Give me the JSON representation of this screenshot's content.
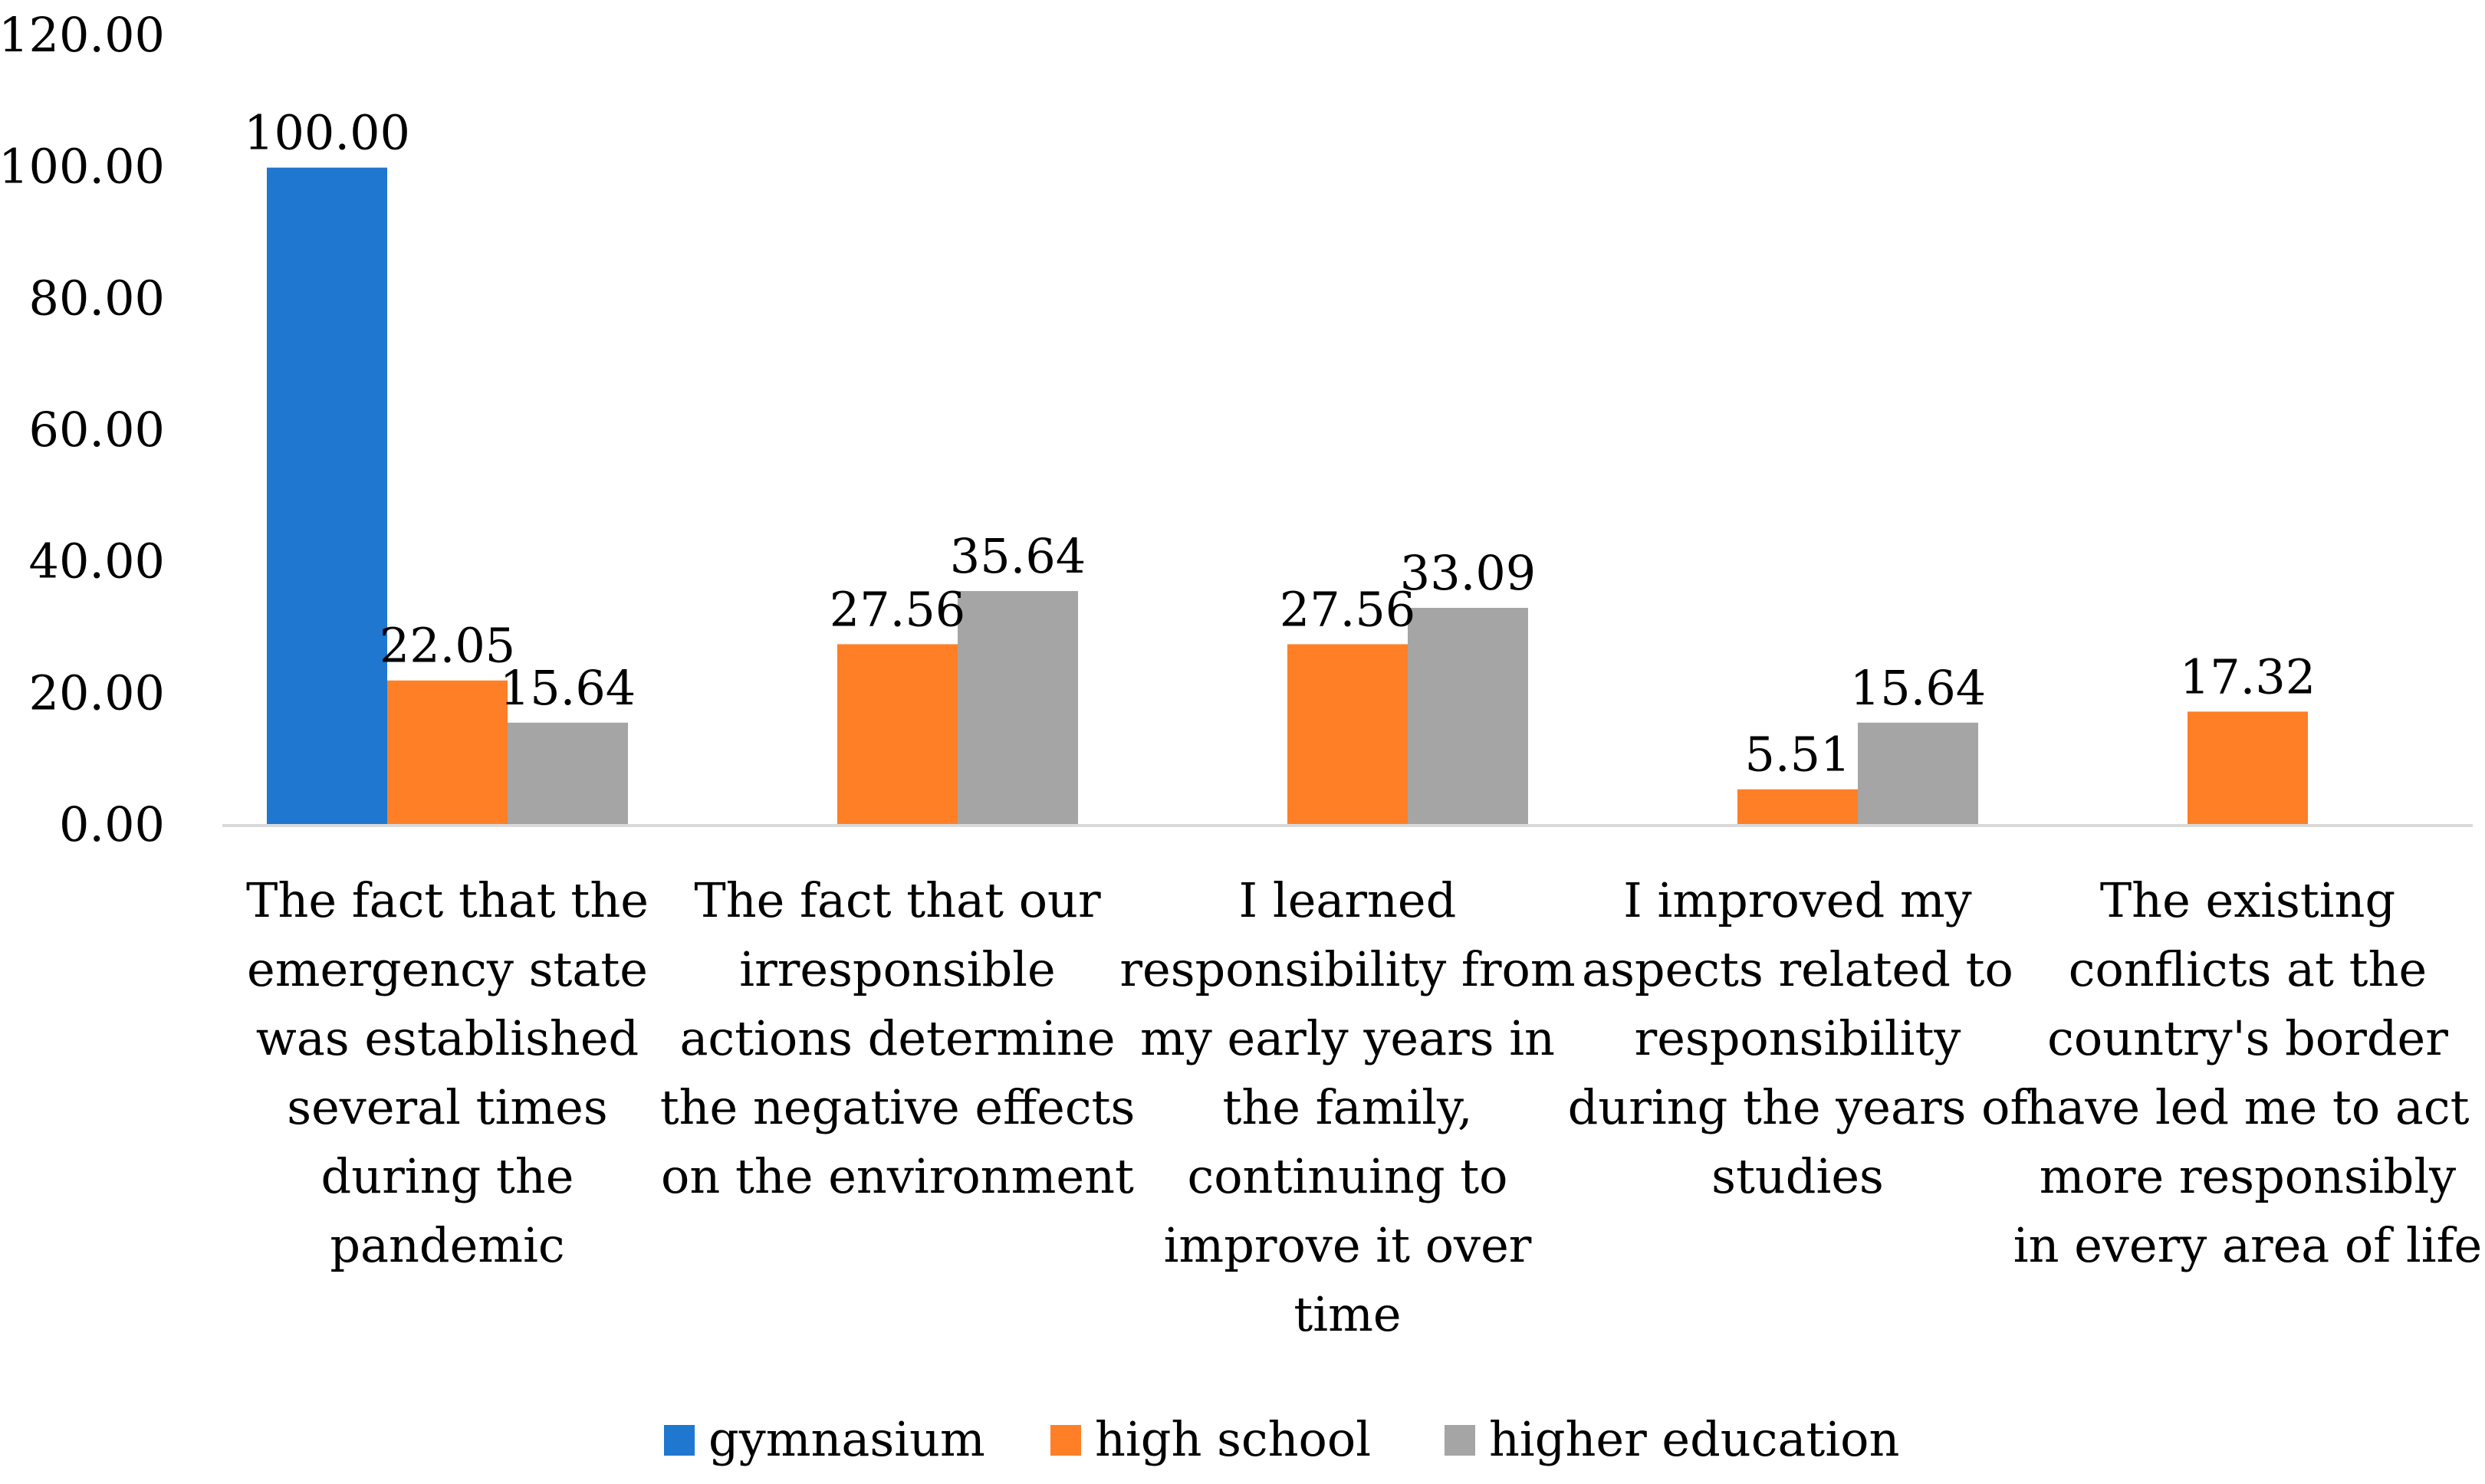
{
  "chart_data": {
    "type": "bar",
    "title": "",
    "xlabel": "",
    "ylabel": "",
    "ylim": [
      0,
      120
    ],
    "yticks": [
      "0.00",
      "20.00",
      "40.00",
      "60.00",
      "80.00",
      "100.00",
      "120.00"
    ],
    "ytick_values": [
      0,
      20,
      40,
      60,
      80,
      100,
      120
    ],
    "grid": false,
    "legend_position": "bottom",
    "categories": [
      [
        "The fact that the",
        "emergency state",
        "was established",
        "several times",
        "during the",
        "pandemic"
      ],
      [
        "The fact that our",
        "irresponsible",
        "actions determine",
        "the negative effects",
        "on the environment"
      ],
      [
        "I learned",
        "responsibility from",
        "my early years in",
        "the family,",
        "continuing to",
        "improve it over",
        "time"
      ],
      [
        "I improved my",
        "aspects related to",
        "responsibility",
        "during the years of",
        "studies"
      ],
      [
        "The existing",
        "conflicts at the",
        "country's border",
        "have led me to act",
        "more responsibly",
        "in every area of life"
      ]
    ],
    "series": [
      {
        "name": "gymnasium",
        "color": "#1F77CF",
        "values": [
          100.0,
          null,
          null,
          null,
          null
        ],
        "labels": [
          "100.00",
          "",
          "",
          "",
          ""
        ]
      },
      {
        "name": "high school",
        "color": "#FF7F27",
        "values": [
          22.05,
          27.56,
          27.56,
          5.51,
          17.32
        ],
        "labels": [
          "22.05",
          "27.56",
          "27.56",
          "5.51",
          "17.32"
        ]
      },
      {
        "name": "higher education",
        "color": "#A5A5A5",
        "values": [
          15.64,
          35.64,
          33.09,
          15.64,
          null
        ],
        "labels": [
          "15.64",
          "35.64",
          "33.09",
          "15.64",
          ""
        ]
      }
    ]
  }
}
